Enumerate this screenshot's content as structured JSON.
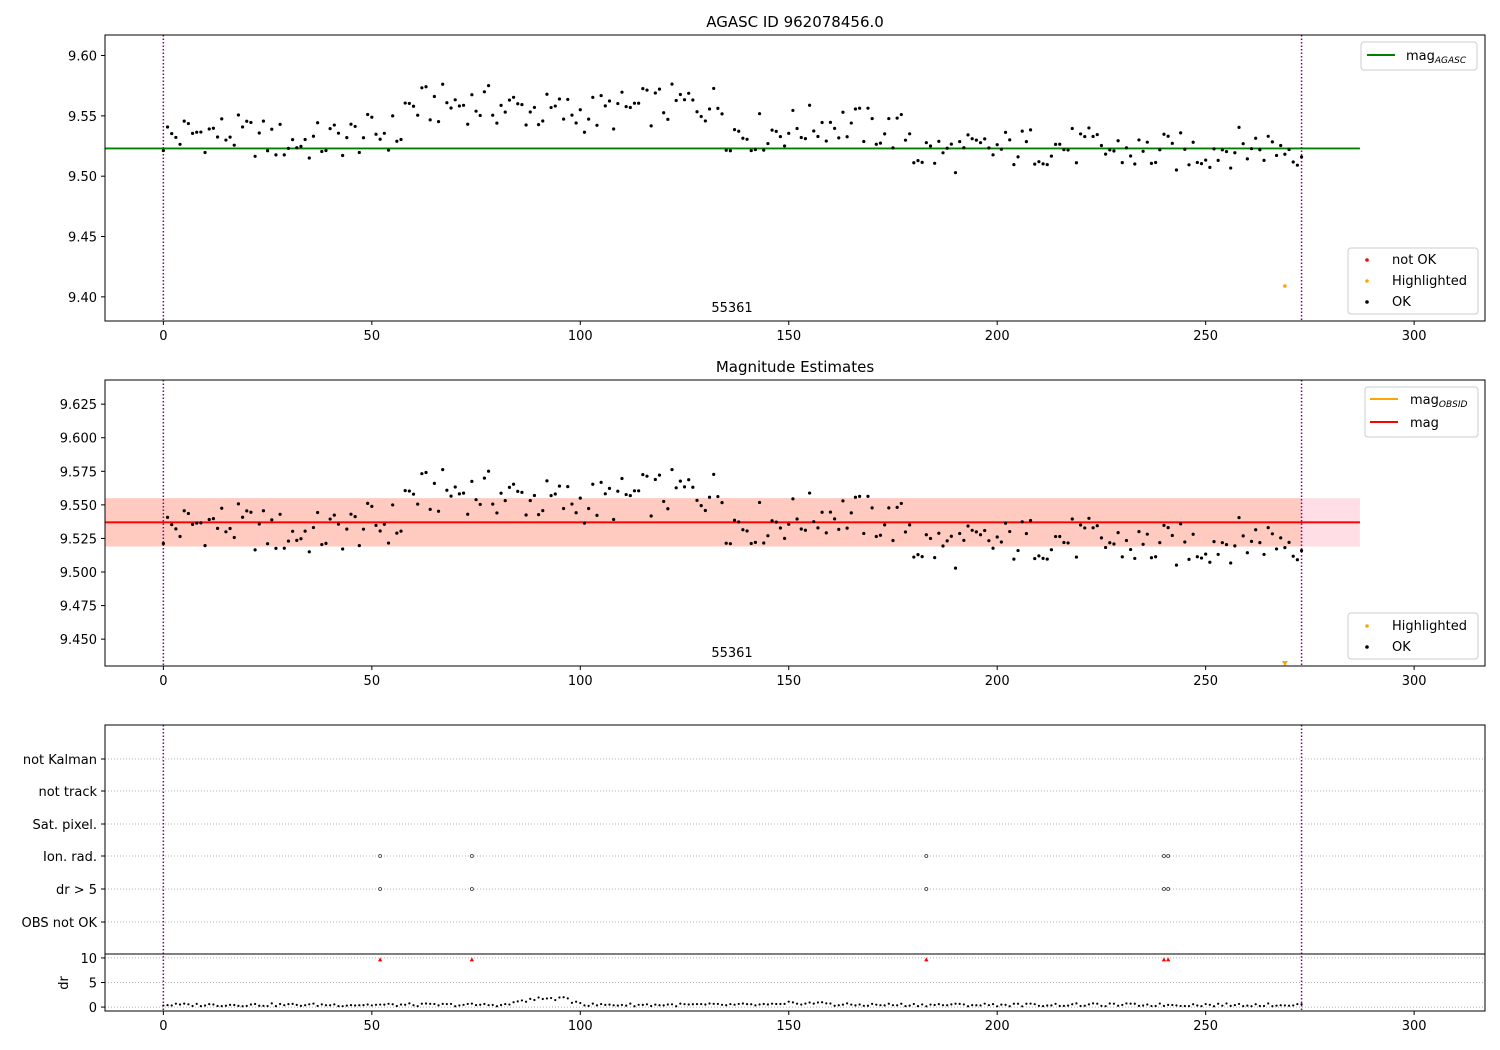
{
  "chart_data": [
    {
      "type": "scatter",
      "title": "AGASC ID 962078456.0",
      "xlim": [
        -14,
        317
      ],
      "ylim": [
        9.38,
        9.617
      ],
      "xticks": [
        0,
        50,
        100,
        150,
        200,
        250,
        300
      ],
      "yticks": [
        9.4,
        9.45,
        9.5,
        9.55,
        9.6
      ],
      "ytick_labels": [
        "9.40",
        "9.45",
        "9.50",
        "9.55",
        "9.60"
      ],
      "annotation": "55361",
      "mag_agasc": 9.523,
      "line_x_end": 287,
      "obs_start": 0,
      "obs_end": 273,
      "highlighted_points": [
        [
          269,
          9.409
        ]
      ],
      "legend_lines": [
        {
          "name": "mag",
          "sub": "AGASC",
          "color": "#008000"
        }
      ],
      "legend_points": [
        {
          "name": "not OK",
          "color": "#ff0000"
        },
        {
          "name": "Highlighted",
          "color": "#ffa500"
        },
        {
          "name": "OK",
          "color": "#000000"
        }
      ]
    },
    {
      "type": "scatter",
      "title": "Magnitude Estimates",
      "xlim": [
        -14,
        317
      ],
      "ylim": [
        9.43,
        9.643
      ],
      "xticks": [
        0,
        50,
        100,
        150,
        200,
        250,
        300
      ],
      "yticks": [
        9.45,
        9.475,
        9.5,
        9.525,
        9.55,
        9.575,
        9.6,
        9.625
      ],
      "ytick_labels": [
        "9.450",
        "9.475",
        "9.500",
        "9.525",
        "9.550",
        "9.575",
        "9.600",
        "9.625"
      ],
      "annotation": "55361",
      "mag": 9.537,
      "mag_obsid": 9.537,
      "band_outer": [
        9.519,
        9.555
      ],
      "band_inner": [
        9.519,
        9.555
      ],
      "band_inner_x": [
        -14,
        273
      ],
      "line_x_end": 287,
      "obs_start": 0,
      "obs_end": 273,
      "highlighted_marker_x": 269,
      "legend_lines": [
        {
          "name": "mag",
          "sub": "OBSID",
          "color": "#ffa500"
        },
        {
          "name": "mag",
          "sub": "",
          "color": "#ff0000"
        }
      ],
      "legend_points": [
        {
          "name": "Highlighted",
          "color": "#ffa500"
        },
        {
          "name": "OK",
          "color": "#000000"
        }
      ]
    },
    {
      "type": "scatter",
      "xlim": [
        -14,
        317
      ],
      "flag_rows": [
        "not Kalman",
        "not track",
        "Sat. pixel.",
        "Ion. rad.",
        "dr > 5",
        "OBS not OK"
      ],
      "flag_points": {
        "Ion. rad.": [
          52,
          74,
          183,
          240,
          241
        ],
        "dr > 5": [
          52,
          74,
          183,
          240,
          241
        ]
      },
      "dr_ylabel": "dr",
      "dr_yticks": [
        0,
        5,
        10
      ],
      "dr_ytick_labels": [
        "0",
        "5",
        "10"
      ],
      "dr_ylim": [
        -0.8,
        10.8
      ],
      "dr_clipped_x": [
        52,
        74,
        183,
        240,
        241
      ],
      "xticks": [
        0,
        50,
        100,
        150,
        200,
        250,
        300
      ],
      "obs_start": 0,
      "obs_end": 273
    }
  ]
}
